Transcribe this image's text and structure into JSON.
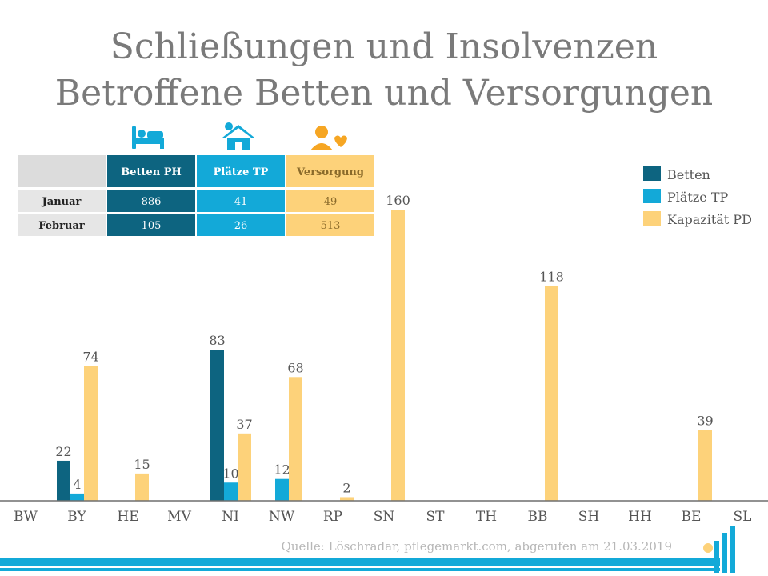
{
  "title_line1": "Schließungen und Insolvenzen",
  "title_line2": "Betroffene Betten und Versorgungen",
  "source": "Quelle: Löschradar, pflegemarkt.com, abgerufen am 21.03.2019",
  "colors": {
    "betten": "#0d6480",
    "plaetze": "#13a9d8",
    "kapazitaet": "#fdd27a",
    "gray": "#dcdcdc"
  },
  "icons": [
    "bed-icon",
    "house-sun-icon",
    "caregiver-heart-icon"
  ],
  "table": {
    "headers": [
      "Betten PH",
      "Plätze TP",
      "Versorgung"
    ],
    "rows": [
      {
        "label": "Januar",
        "values": [
          "886",
          "41",
          "49"
        ]
      },
      {
        "label": "Februar",
        "values": [
          "105",
          "26",
          "513"
        ]
      }
    ]
  },
  "chart_data": {
    "type": "bar",
    "categories": [
      "BW",
      "BY",
      "HE",
      "MV",
      "NI",
      "NW",
      "RP",
      "SN",
      "ST",
      "TH",
      "BB",
      "SH",
      "HH",
      "BE",
      "SL"
    ],
    "series": [
      {
        "name": "Betten",
        "values": [
          null,
          22,
          null,
          null,
          83,
          null,
          null,
          null,
          null,
          null,
          null,
          null,
          null,
          null,
          null
        ]
      },
      {
        "name": "Plätze TP",
        "values": [
          null,
          4,
          null,
          null,
          10,
          12,
          null,
          null,
          null,
          null,
          null,
          null,
          null,
          null,
          null
        ]
      },
      {
        "name": "Kapazität PD",
        "values": [
          null,
          74,
          15,
          null,
          37,
          68,
          2,
          160,
          null,
          null,
          118,
          null,
          null,
          39,
          null
        ]
      }
    ],
    "legend_position": "top-right",
    "ylim": [
      0,
      170
    ],
    "grid": false
  }
}
